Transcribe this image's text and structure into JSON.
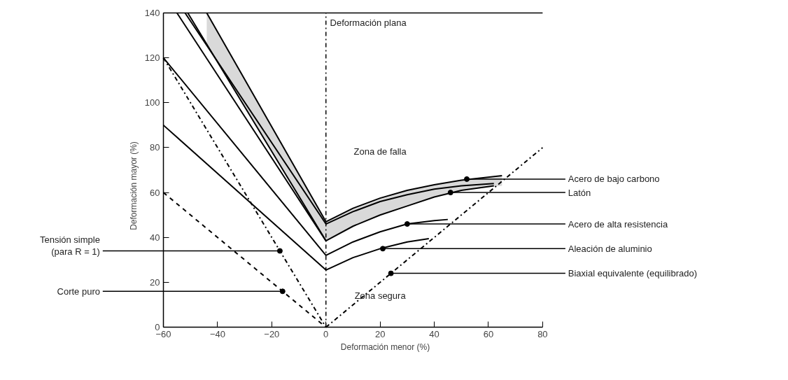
{
  "chart_data": {
    "type": "line",
    "xlabel": "Deformación menor (%)",
    "ylabel": "Deformación mayor (%)",
    "xlim": [
      -60,
      80
    ],
    "ylim": [
      0,
      140
    ],
    "xticks": [
      {
        "value": -60,
        "label": "−60"
      },
      {
        "value": -40,
        "label": "−40"
      },
      {
        "value": -20,
        "label": "−20"
      },
      0,
      20,
      40,
      60,
      80
    ],
    "yticks": [
      0,
      20,
      40,
      60,
      80,
      100,
      120,
      140
    ],
    "grid": false,
    "marker": "none",
    "series": [
      {
        "color": "#000000",
        "line_style": "solid",
        "x": [
          -44,
          0,
          10,
          20,
          30,
          40,
          50,
          65
        ],
        "values": [
          140,
          47,
          53,
          57.5,
          61,
          63.5,
          65.5,
          67.5
        ],
        "lower": [
          126,
          38.5,
          45,
          50,
          54,
          58,
          61,
          63
        ],
        "upper": [
          140,
          47,
          53,
          57.5,
          61,
          63.5,
          65.5,
          67.5
        ]
      },
      {
        "color": "#000000",
        "line_style": "solid",
        "x": [
          -52,
          0,
          10,
          20,
          30,
          40,
          50,
          62
        ],
        "values": [
          140,
          46,
          51.5,
          56,
          59,
          61.5,
          63,
          64
        ]
      },
      {
        "color": "#000000",
        "line_style": "solid",
        "x": [
          -51,
          0,
          10,
          20,
          30,
          40,
          50,
          62
        ],
        "values": [
          140,
          38.5,
          45,
          50,
          54,
          58,
          61,
          63
        ]
      },
      {
        "color": "#000000",
        "line_style": "solid",
        "x": [
          -55,
          0
        ],
        "values": [
          140,
          38.5
        ]
      },
      {
        "color": "#000000",
        "line_style": "solid",
        "x": [
          -60,
          0,
          10,
          20,
          30,
          40,
          45
        ],
        "values": [
          120,
          32,
          38,
          42.5,
          46,
          47.5,
          48
        ]
      },
      {
        "color": "#000000",
        "line_style": "solid",
        "x": [
          -60,
          0,
          10,
          20,
          30,
          38
        ],
        "values": [
          90,
          25.5,
          31,
          35,
          38,
          39.5
        ]
      },
      {
        "color": "#000000",
        "line_style": "dashdot",
        "x": [
          0,
          80
        ],
        "values": [
          0,
          80
        ]
      },
      {
        "color": "#000000",
        "line_style": "dashdot",
        "x": [
          -60,
          0
        ],
        "values": [
          120,
          0
        ]
      },
      {
        "color": "#000000",
        "line_style": "dashed",
        "x": [
          -60,
          0
        ],
        "values": [
          60,
          0
        ]
      }
    ],
    "ref_lines": [
      {
        "axis": "x",
        "value": 0,
        "label": "Deformación plana",
        "line_style": "dashdot",
        "color": "#000000"
      }
    ],
    "annotations": [
      {
        "text": "Acero de bajo carbono",
        "x": 52,
        "y": 66
      },
      {
        "text": "Latón",
        "x": 46,
        "y": 60
      },
      {
        "text": "Acero de alta resistencia",
        "x": 30,
        "y": 46
      },
      {
        "text": "Aleación de aluminio",
        "x": 21,
        "y": 35
      },
      {
        "text": "Biaxial equivalente (equilibrado)",
        "x": 24,
        "y": 24
      },
      {
        "text": "Tensión simple\n(para R = 1)",
        "x": -17,
        "y": 34
      },
      {
        "text": "Corte puro",
        "x": -16,
        "y": 16
      },
      "Zona de falla",
      "Zona segura"
    ]
  }
}
